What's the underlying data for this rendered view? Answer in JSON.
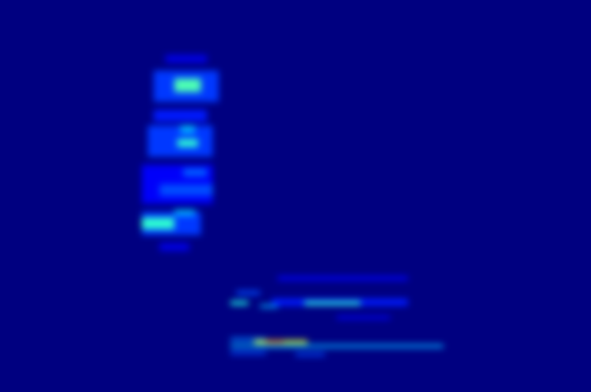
{
  "chart_data": {
    "type": "heatmap",
    "tick_labels": false,
    "xlim": [
      0,
      100
    ],
    "ylim": [
      0,
      100
    ],
    "color_range": [
      0,
      1
    ],
    "cells": [
      {
        "x1": 26,
        "x2": 37,
        "y1": 74,
        "y2": 82,
        "value": 0.18
      },
      {
        "x1": 25,
        "x2": 36,
        "y1": 60,
        "y2": 68,
        "value": 0.18
      },
      {
        "x1": 24,
        "x2": 34,
        "y1": 40,
        "y2": 46,
        "value": 0.18
      },
      {
        "x1": 24,
        "x2": 36,
        "y1": 48,
        "y2": 58,
        "value": 0.12
      },
      {
        "x1": 26,
        "x2": 35,
        "y1": 69,
        "y2": 72,
        "value": 0.15
      },
      {
        "x1": 28,
        "x2": 35,
        "y1": 84,
        "y2": 86,
        "value": 0.1
      },
      {
        "x1": 27,
        "x2": 36,
        "y1": 50,
        "y2": 53,
        "value": 0.2
      },
      {
        "x1": 31,
        "x2": 35,
        "y1": 55,
        "y2": 57,
        "value": 0.22
      },
      {
        "x1": 27,
        "x2": 32,
        "y1": 36,
        "y2": 38,
        "value": 0.1
      },
      {
        "x1": 29.5,
        "x2": 34,
        "y1": 76.5,
        "y2": 80,
        "value": 0.45
      },
      {
        "x1": 30,
        "x2": 33.5,
        "y1": 62.5,
        "y2": 64.5,
        "value": 0.42
      },
      {
        "x1": 30.5,
        "x2": 33,
        "y1": 66,
        "y2": 68,
        "value": 0.3
      },
      {
        "x1": 24,
        "x2": 29.5,
        "y1": 41.5,
        "y2": 44.5,
        "value": 0.42
      },
      {
        "x1": 29.5,
        "x2": 33,
        "y1": 45,
        "y2": 46.5,
        "value": 0.3
      },
      {
        "x1": 47,
        "x2": 69,
        "y1": 28.5,
        "y2": 29.5,
        "value": 0.12
      },
      {
        "x1": 46,
        "x2": 69,
        "y1": 22,
        "y2": 23.8,
        "value": 0.15
      },
      {
        "x1": 40,
        "x2": 44,
        "y1": 24.8,
        "y2": 25.8,
        "value": 0.2
      },
      {
        "x1": 39,
        "x2": 42,
        "y1": 22.2,
        "y2": 23.2,
        "value": 0.4
      },
      {
        "x1": 51.5,
        "x2": 61,
        "y1": 22.2,
        "y2": 23.2,
        "value": 0.42
      },
      {
        "x1": 44,
        "x2": 47,
        "y1": 21.5,
        "y2": 22.3,
        "value": 0.3
      },
      {
        "x1": 57,
        "x2": 66,
        "y1": 18.5,
        "y2": 19.5,
        "value": 0.1
      },
      {
        "x1": 39,
        "x2": 75,
        "y1": 11.3,
        "y2": 12.1,
        "value": 0.3
      },
      {
        "x1": 39,
        "x2": 45,
        "y1": 13,
        "y2": 13.8,
        "value": 0.25
      },
      {
        "x1": 43,
        "x2": 52,
        "y1": 12.3,
        "y2": 13.2,
        "value": 0.6
      },
      {
        "x1": 45,
        "x2": 48,
        "y1": 12.4,
        "y2": 13.1,
        "value": 0.75
      },
      {
        "x1": 39,
        "x2": 45,
        "y1": 9.6,
        "y2": 10.4,
        "value": 0.2
      },
      {
        "x1": 50,
        "x2": 55,
        "y1": 9.2,
        "y2": 10,
        "value": 0.2
      }
    ]
  }
}
